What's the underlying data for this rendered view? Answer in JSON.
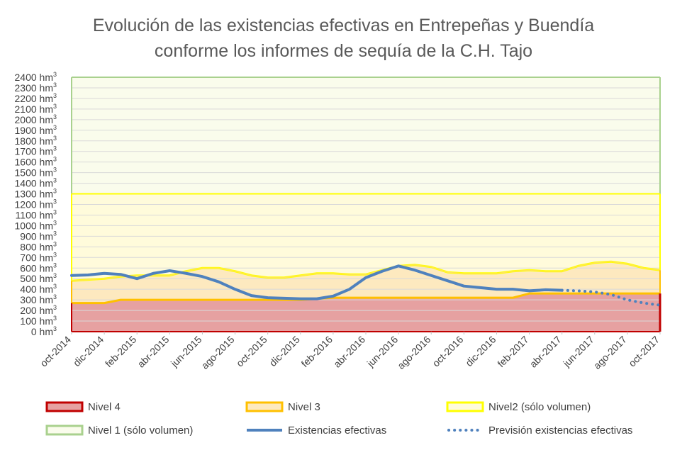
{
  "chart_data": {
    "type": "area",
    "title_line1": "Evolución de las existencias efectivas en Entrepeñas y Buendía",
    "title_line2": "conforme los informes de sequía de la C.H. Tajo",
    "y_unit": "hm",
    "y_unit_exp": "3",
    "ylim": [
      0,
      2400
    ],
    "ytick_step": 100,
    "grid": true,
    "legend_placement": "bottom",
    "categories": [
      "oct-2014",
      "nov-2014",
      "dic-2014",
      "ene-2015",
      "feb-2015",
      "mar-2015",
      "abr-2015",
      "may-2015",
      "jun-2015",
      "jul-2015",
      "ago-2015",
      "sep-2015",
      "oct-2015",
      "nov-2015",
      "dic-2015",
      "ene-2016",
      "feb-2016",
      "mar-2016",
      "abr-2016",
      "may-2016",
      "jun-2016",
      "jul-2016",
      "ago-2016",
      "sep-2016",
      "oct-2016",
      "nov-2016",
      "dic-2016",
      "ene-2017",
      "feb-2017",
      "mar-2017",
      "abr-2017",
      "may-2017",
      "jun-2017",
      "jul-2017",
      "ago-2017",
      "sep-2017",
      "oct-2017"
    ],
    "x_labels": [
      "oct-2014",
      "dic-2014",
      "feb-2015",
      "abr-2015",
      "jun-2015",
      "ago-2015",
      "oct-2015",
      "dic-2015",
      "feb-2016",
      "abr-2016",
      "jun-2016",
      "ago-2016",
      "oct-2016",
      "dic-2016",
      "feb-2017",
      "abr-2017",
      "jun-2017",
      "ago-2017",
      "oct-2017"
    ],
    "series": [
      {
        "name": "Nivel 1 (sólo volumen)",
        "kind": "band",
        "values": [
          2400,
          2400,
          2400,
          2400,
          2400,
          2400,
          2400,
          2400,
          2400,
          2400,
          2400,
          2400,
          2400,
          2400,
          2400,
          2400,
          2400,
          2400,
          2400,
          2400,
          2400,
          2400,
          2400,
          2400,
          2400,
          2400,
          2400,
          2400,
          2400,
          2400,
          2400,
          2400,
          2400,
          2400,
          2400,
          2400,
          2400
        ]
      },
      {
        "name": "Nivel2 (sólo volumen)",
        "kind": "band",
        "values": [
          1300,
          1300,
          1300,
          1300,
          1300,
          1300,
          1300,
          1300,
          1300,
          1300,
          1300,
          1300,
          1300,
          1300,
          1300,
          1300,
          1300,
          1300,
          1300,
          1300,
          1300,
          1300,
          1300,
          1300,
          1300,
          1300,
          1300,
          1300,
          1300,
          1300,
          1300,
          1300,
          1300,
          1300,
          1300,
          1300,
          1300
        ]
      },
      {
        "name": "Nivel 3",
        "kind": "band",
        "values": [
          480,
          490,
          500,
          520,
          530,
          530,
          530,
          570,
          600,
          600,
          570,
          530,
          510,
          510,
          530,
          550,
          550,
          540,
          540,
          580,
          620,
          630,
          610,
          560,
          550,
          550,
          550,
          570,
          580,
          570,
          570,
          620,
          650,
          660,
          640,
          600,
          580
        ]
      },
      {
        "name": "Nivel 4",
        "kind": "band",
        "values": [
          270,
          270,
          270,
          300,
          300,
          300,
          300,
          300,
          300,
          300,
          300,
          300,
          300,
          300,
          300,
          310,
          320,
          320,
          320,
          320,
          320,
          320,
          320,
          320,
          320,
          320,
          320,
          320,
          360,
          360,
          360,
          360,
          360,
          360,
          360,
          360,
          360
        ]
      },
      {
        "name": "Existencias efectivas",
        "kind": "line",
        "values": [
          530,
          535,
          550,
          540,
          500,
          550,
          575,
          550,
          520,
          470,
          400,
          340,
          320,
          315,
          310,
          310,
          335,
          400,
          510,
          570,
          620,
          580,
          530,
          480,
          430,
          415,
          400,
          400,
          385,
          395,
          390,
          null,
          null,
          null,
          null,
          null,
          null
        ]
      },
      {
        "name": "Previsión existencias efectivas",
        "kind": "dotted",
        "values": [
          null,
          null,
          null,
          null,
          null,
          null,
          null,
          null,
          null,
          null,
          null,
          null,
          null,
          null,
          null,
          null,
          null,
          null,
          null,
          null,
          null,
          null,
          null,
          null,
          null,
          null,
          null,
          null,
          null,
          null,
          390,
          385,
          375,
          350,
          300,
          270,
          250
        ]
      }
    ],
    "colors": {
      "nivel1_fill": "#fafcec",
      "nivel1_line": "#a9d18e",
      "nivel2_fill": "#fffbdb",
      "nivel2_line": "#ffff00",
      "nivel3_fill": "#fde9bf",
      "nivel3_line": "#ffc000",
      "nivel4_fill": "#e6a1a1",
      "nivel4_line": "#c00000",
      "existencias": "#4f81bd"
    }
  },
  "legend": [
    {
      "key": "nivel4",
      "label": "Nivel 4"
    },
    {
      "key": "nivel3",
      "label": "Nivel 3"
    },
    {
      "key": "nivel2",
      "label": "Nivel2 (sólo volumen)"
    },
    {
      "key": "nivel1",
      "label": "Nivel 1 (sólo volumen)"
    },
    {
      "key": "existencias",
      "label": "Existencias efectivas"
    },
    {
      "key": "prevision",
      "label": "Previsión existencias efectivas"
    }
  ]
}
